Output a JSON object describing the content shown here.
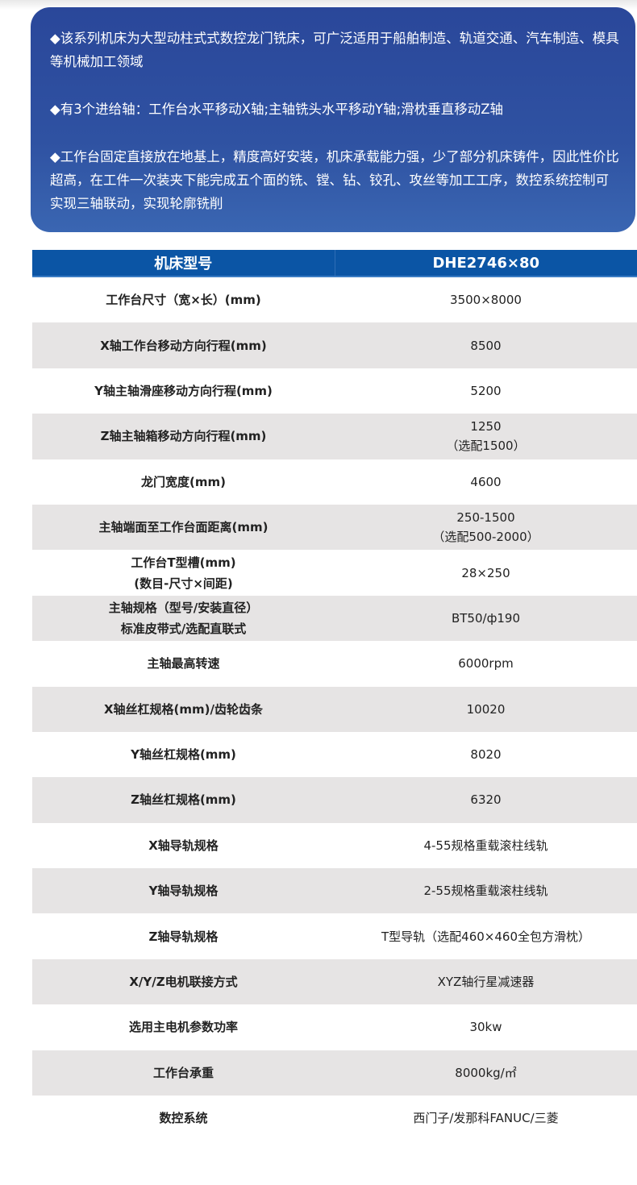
{
  "intro": {
    "paragraphs": [
      "◆该系列机床为大型动柱式式数控龙门铣床，可广泛适用于船舶制造、轨道交通、汽车制造、模具等机械加工领域",
      "◆有3个进给轴：工作台水平移动X轴;主轴铣头水平移动Y轴;滑枕垂直移动Z轴",
      "◆工作台固定直接放在地基上，精度高好安装，机床承载能力强，少了部分机床铸件，因此性价比超高，在工件一次装夹下能完成五个面的铣、镗、钻、铰孔、攻丝等加工工序，数控系统控制可实现三轴联动，实现轮廓铣削"
    ]
  },
  "table": {
    "header": [
      "机床型号",
      "DHE2746×80"
    ],
    "rows": [
      {
        "k": [
          "工作台尺寸（宽×长）(mm)"
        ],
        "v": [
          "3500×8000"
        ]
      },
      {
        "k": [
          "X轴工作台移动方向行程(mm)"
        ],
        "v": [
          "8500"
        ]
      },
      {
        "k": [
          "Y轴主轴滑座移动方向行程(mm)"
        ],
        "v": [
          "5200"
        ]
      },
      {
        "k": [
          "Z轴主轴箱移动方向行程(mm)"
        ],
        "v": [
          "1250",
          "（选配1500）"
        ]
      },
      {
        "k": [
          "龙门宽度(mm)"
        ],
        "v": [
          "4600"
        ]
      },
      {
        "k": [
          "主轴端面至工作台面距离(mm)"
        ],
        "v": [
          "250-1500",
          "（选配500-2000）"
        ]
      },
      {
        "k": [
          "工作台T型槽(mm)",
          "(数目-尺寸×间距)"
        ],
        "v": [
          "28×250"
        ]
      },
      {
        "k": [
          "主轴规格（型号/安装直径）",
          "标准皮带式/选配直联式"
        ],
        "v": [
          "BT50/ф190"
        ]
      },
      {
        "k": [
          "主轴最高转速"
        ],
        "v": [
          "6000rpm"
        ]
      },
      {
        "k": [
          "X轴丝杠规格(mm)/齿轮齿条"
        ],
        "v": [
          "10020"
        ]
      },
      {
        "k": [
          "Y轴丝杠规格(mm)"
        ],
        "v": [
          "8020"
        ]
      },
      {
        "k": [
          "Z轴丝杠规格(mm)"
        ],
        "v": [
          "6320"
        ]
      },
      {
        "k": [
          "X轴导轨规格"
        ],
        "v": [
          "4-55规格重载滚柱线轨"
        ]
      },
      {
        "k": [
          "Y轴导轨规格"
        ],
        "v": [
          "2-55规格重载滚柱线轨"
        ]
      },
      {
        "k": [
          "Z轴导轨规格"
        ],
        "v": [
          "T型导轨（选配460×460全包方滑枕）"
        ]
      },
      {
        "k": [
          "X/Y/Z电机联接方式"
        ],
        "v": [
          "XYZ轴行星减速器"
        ]
      },
      {
        "k": [
          "选用主电机参数功率"
        ],
        "v": [
          "30kw"
        ]
      },
      {
        "k": [
          "工作台承重"
        ],
        "v": [
          "8000kg/㎡"
        ]
      },
      {
        "k": [
          "数控系统"
        ],
        "v": [
          "西门子/发那科FANUC/三菱"
        ]
      }
    ]
  },
  "colors": {
    "intro_bg": "#2f52a2",
    "header_bg": "#0b55a5",
    "alt_row": "#e6e4e4"
  }
}
